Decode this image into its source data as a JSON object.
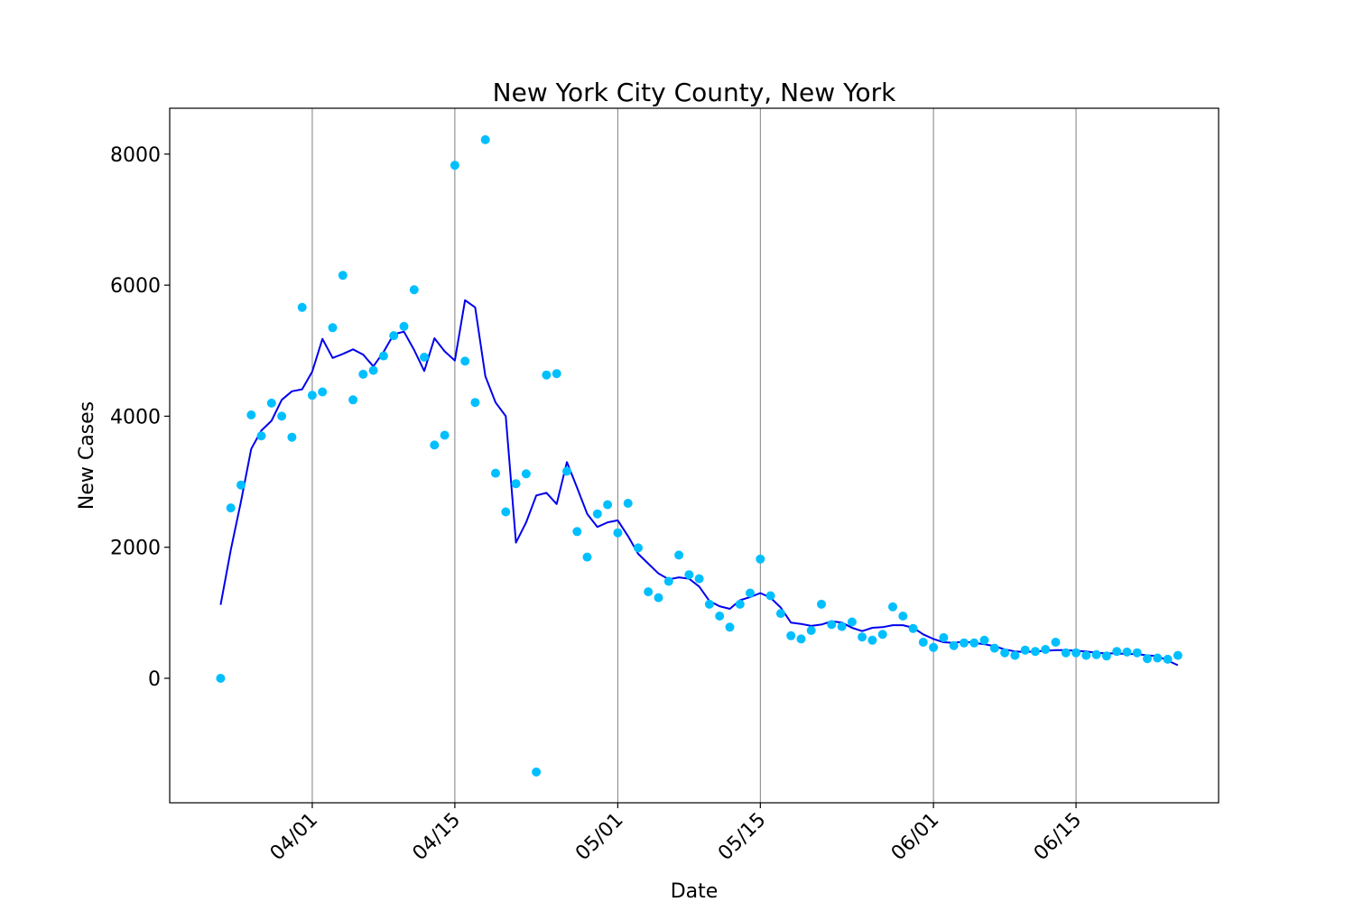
{
  "chart_data": {
    "type": "scatter",
    "title": "New York City County, New York",
    "xlabel": "Date",
    "ylabel": "New Cases",
    "x_start_date": "2020-03-23",
    "xlim": [
      "2020-03-18",
      "2020-06-29"
    ],
    "ylim": [
      -1900,
      8700
    ],
    "yticks": [
      0,
      2000,
      4000,
      6000,
      8000
    ],
    "xticks": [
      {
        "date": "2020-04-01",
        "label": "04/01"
      },
      {
        "date": "2020-04-15",
        "label": "04/15"
      },
      {
        "date": "2020-05-01",
        "label": "05/01"
      },
      {
        "date": "2020-05-15",
        "label": "05/15"
      },
      {
        "date": "2020-06-01",
        "label": "06/01"
      },
      {
        "date": "2020-06-15",
        "label": "06/15"
      }
    ],
    "vertical_grid": true,
    "colors": {
      "points": "#00bfff",
      "line": "#0000ee",
      "grid": "#808080"
    },
    "series": [
      {
        "kind": "points",
        "values": [
          0,
          2600,
          2950,
          4020,
          3700,
          4200,
          4000,
          3680,
          5660,
          4320,
          4370,
          5350,
          6150,
          4250,
          4640,
          4700,
          4920,
          5230,
          5370,
          5930,
          4900,
          3560,
          3710,
          7830,
          4840,
          4210,
          8220,
          3130,
          2540,
          2970,
          3120,
          -1430,
          4630,
          4650,
          3160,
          2240,
          1850,
          2510,
          2650,
          2220,
          2670,
          1990,
          1320,
          1230,
          1480,
          1880,
          1580,
          1520,
          1130,
          950,
          780,
          1130,
          1300,
          1820,
          1260,
          990,
          650,
          600,
          730,
          1130,
          820,
          790,
          860,
          630,
          580,
          670,
          1090,
          950,
          760,
          550,
          470,
          620,
          500,
          540,
          540,
          580,
          460,
          390,
          350,
          430,
          410,
          440,
          550,
          390,
          390,
          350,
          360,
          340,
          410,
          400,
          390,
          300,
          310,
          290,
          350
        ]
      },
      {
        "kind": "line",
        "values": [
          1120,
          1960,
          2700,
          3500,
          3780,
          3930,
          4250,
          4380,
          4410,
          4680,
          5180,
          4890,
          4950,
          5020,
          4940,
          4760,
          4980,
          5250,
          5290,
          5010,
          4690,
          5190,
          4990,
          4850,
          5770,
          5660,
          4610,
          4210,
          4000,
          2070,
          2380,
          2790,
          2830,
          2660,
          3300,
          2910,
          2510,
          2310,
          2380,
          2410,
          2170,
          1900,
          1750,
          1600,
          1510,
          1540,
          1520,
          1400,
          1180,
          1100,
          1060,
          1190,
          1240,
          1300,
          1230,
          1080,
          850,
          830,
          800,
          820,
          870,
          850,
          770,
          720,
          770,
          780,
          810,
          810,
          770,
          670,
          600,
          550,
          540,
          560,
          540,
          520,
          490,
          440,
          410,
          400,
          410,
          420,
          430,
          430,
          420,
          410,
          390,
          380,
          380,
          370,
          370,
          350,
          340,
          270,
          200
        ]
      }
    ]
  }
}
